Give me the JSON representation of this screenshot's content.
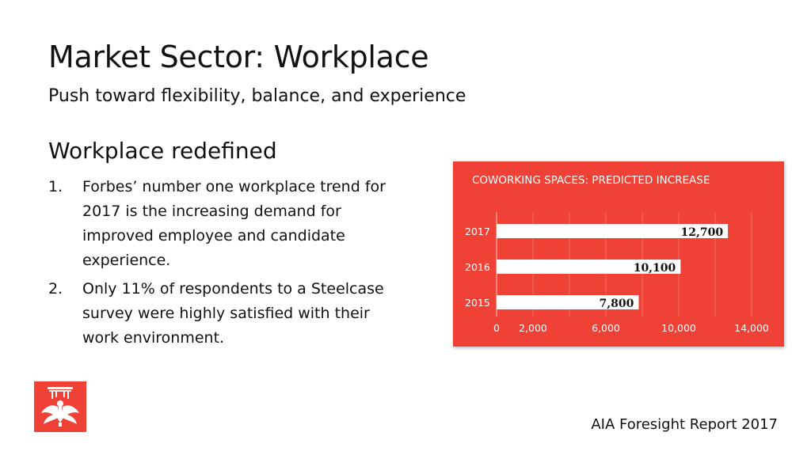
{
  "slide": {
    "title": "Market Sector: Workplace",
    "subtitle": "Push toward flexibility, balance, and experience",
    "section_heading": "Workplace redefined",
    "points": [
      {
        "number": "1.",
        "text": "Forbes’ number one workplace trend for 2017 is the increasing demand for improved employee and candidate experience."
      },
      {
        "number": "2.",
        "text": "Only 11% of respondents to a Steelcase survey were highly satisfied with their work environment."
      }
    ],
    "footer": "AIA Foresight Report 2017"
  },
  "logo": {
    "icon": "aia-eagle-logo-icon",
    "color": "#ef4136"
  },
  "colors": {
    "chart_background": "#ef4136",
    "bar": "#ffffff",
    "text_light": "#ffffff",
    "text_dark": "#111111"
  },
  "chart_data": {
    "type": "bar",
    "orientation": "horizontal",
    "title": "COWORKING SPACES: PREDICTED INCREASE",
    "categories": [
      "2017",
      "2016",
      "2015"
    ],
    "values": [
      12700,
      10100,
      7800
    ],
    "value_labels": [
      "12,700",
      "10,100",
      "7,800"
    ],
    "xlim": [
      0,
      15000
    ],
    "x_ticks": [
      0,
      2000,
      6000,
      10000,
      14000
    ],
    "x_tick_labels": [
      "0",
      "2,000",
      "6,000",
      "10,000",
      "14,000"
    ],
    "grid": true,
    "legend": "none"
  }
}
